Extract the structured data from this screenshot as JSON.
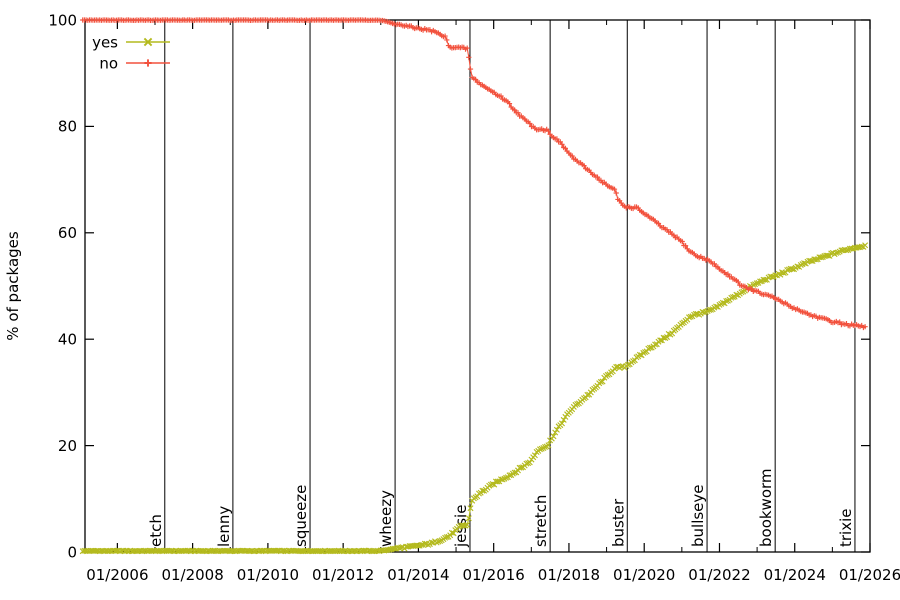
{
  "page": {
    "background": "#ffffff"
  },
  "chart_data": {
    "type": "line",
    "title": "",
    "xlabel": "",
    "ylabel": "% of packages",
    "grid": false,
    "x_range": [
      2005.14,
      2026.0
    ],
    "y_range": [
      0,
      100
    ],
    "x_ticks": [
      {
        "year": 2006,
        "label": "01/2006"
      },
      {
        "year": 2008,
        "label": "01/2008"
      },
      {
        "year": 2010,
        "label": "01/2010"
      },
      {
        "year": 2012,
        "label": "01/2012"
      },
      {
        "year": 2014,
        "label": "01/2014"
      },
      {
        "year": 2016,
        "label": "01/2016"
      },
      {
        "year": 2018,
        "label": "01/2018"
      },
      {
        "year": 2020,
        "label": "01/2020"
      },
      {
        "year": 2022,
        "label": "01/2022"
      },
      {
        "year": 2024,
        "label": "01/2024"
      },
      {
        "year": 2026,
        "label": "01/2026"
      }
    ],
    "x_minor_ticks": [
      2007,
      2009,
      2011,
      2013,
      2015,
      2017,
      2019,
      2021,
      2023,
      2025
    ],
    "y_ticks": [
      {
        "value": 0,
        "label": "0"
      },
      {
        "value": 20,
        "label": "20"
      },
      {
        "value": 40,
        "label": "40"
      },
      {
        "value": 60,
        "label": "60"
      },
      {
        "value": 80,
        "label": "80"
      },
      {
        "value": 100,
        "label": "100"
      }
    ],
    "legend": {
      "position": "top-left",
      "entries": [
        {
          "label": "yes",
          "color": "#b4ba1e",
          "marker": "x"
        },
        {
          "label": "no",
          "color": "#f2513d",
          "marker": "+"
        }
      ]
    },
    "release_lines": [
      {
        "label": "etch",
        "year": 2007.26
      },
      {
        "label": "lenny",
        "year": 2009.07
      },
      {
        "label": "squeeze",
        "year": 2011.12
      },
      {
        "label": "wheezy",
        "year": 2013.38
      },
      {
        "label": "jessie",
        "year": 2015.37
      },
      {
        "label": "stretch",
        "year": 2017.5
      },
      {
        "label": "buster",
        "year": 2019.55
      },
      {
        "label": "bullseye",
        "year": 2021.67
      },
      {
        "label": "bookworm",
        "year": 2023.48
      },
      {
        "label": "trixie",
        "year": 2025.6
      }
    ],
    "series": [
      {
        "name": "yes",
        "color": "#b4ba1e",
        "marker": "x",
        "points": [
          [
            2005.08,
            0.2
          ],
          [
            2012.9,
            0.2
          ],
          [
            2013.1,
            0.3
          ],
          [
            2013.25,
            0.5
          ],
          [
            2013.55,
            0.8
          ],
          [
            2013.85,
            1.0
          ],
          [
            2014.1,
            1.3
          ],
          [
            2014.4,
            1.7
          ],
          [
            2014.62,
            2.4
          ],
          [
            2014.8,
            2.9
          ],
          [
            2015.0,
            4.1
          ],
          [
            2015.12,
            4.8
          ],
          [
            2015.3,
            5.1
          ],
          [
            2015.36,
            7.0
          ],
          [
            2015.42,
            9.7
          ],
          [
            2015.6,
            10.8
          ],
          [
            2015.7,
            11.4
          ],
          [
            2015.95,
            12.6
          ],
          [
            2016.2,
            13.6
          ],
          [
            2016.5,
            14.7
          ],
          [
            2016.75,
            15.9
          ],
          [
            2017.0,
            17.2
          ],
          [
            2017.15,
            18.9
          ],
          [
            2017.3,
            19.7
          ],
          [
            2017.45,
            20.0
          ],
          [
            2017.52,
            21.2
          ],
          [
            2017.8,
            24.2
          ],
          [
            2018.05,
            26.7
          ],
          [
            2018.35,
            28.6
          ],
          [
            2018.6,
            30.1
          ],
          [
            2018.85,
            31.9
          ],
          [
            2019.12,
            33.9
          ],
          [
            2019.25,
            34.6
          ],
          [
            2019.5,
            34.8
          ],
          [
            2019.58,
            35.3
          ],
          [
            2019.95,
            37.2
          ],
          [
            2020.2,
            38.6
          ],
          [
            2020.5,
            40.0
          ],
          [
            2020.75,
            41.3
          ],
          [
            2021.0,
            42.8
          ],
          [
            2021.2,
            44.2
          ],
          [
            2021.4,
            44.7
          ],
          [
            2021.67,
            45.1
          ],
          [
            2021.9,
            45.9
          ],
          [
            2022.15,
            47.0
          ],
          [
            2022.45,
            48.2
          ],
          [
            2022.7,
            49.4
          ],
          [
            2022.95,
            50.3
          ],
          [
            2023.2,
            51.2
          ],
          [
            2023.48,
            51.9
          ],
          [
            2023.9,
            53.1
          ],
          [
            2024.4,
            54.6
          ],
          [
            2024.95,
            55.9
          ],
          [
            2025.35,
            56.8
          ],
          [
            2025.65,
            57.3
          ],
          [
            2025.88,
            57.6
          ]
        ]
      },
      {
        "name": "no",
        "color": "#f2513d",
        "marker": "+",
        "points": [
          [
            2005.08,
            100
          ],
          [
            2012.9,
            100
          ],
          [
            2013.1,
            99.8
          ],
          [
            2013.25,
            99.5
          ],
          [
            2013.55,
            99.0
          ],
          [
            2013.85,
            98.6
          ],
          [
            2014.1,
            98.3
          ],
          [
            2014.4,
            97.9
          ],
          [
            2014.62,
            97.1
          ],
          [
            2014.72,
            96.8
          ],
          [
            2014.8,
            95.2
          ],
          [
            2014.9,
            94.9
          ],
          [
            2015.3,
            94.6
          ],
          [
            2015.36,
            92.0
          ],
          [
            2015.42,
            89.2
          ],
          [
            2015.6,
            88.3
          ],
          [
            2015.7,
            87.7
          ],
          [
            2015.95,
            86.6
          ],
          [
            2016.2,
            85.5
          ],
          [
            2016.34,
            84.8
          ],
          [
            2016.5,
            83.5
          ],
          [
            2016.75,
            81.7
          ],
          [
            2017.0,
            80.2
          ],
          [
            2017.12,
            79.6
          ],
          [
            2017.42,
            79.3
          ],
          [
            2017.52,
            78.5
          ],
          [
            2017.8,
            76.7
          ],
          [
            2018.05,
            74.5
          ],
          [
            2018.35,
            72.7
          ],
          [
            2018.6,
            71.3
          ],
          [
            2018.85,
            69.8
          ],
          [
            2019.12,
            68.4
          ],
          [
            2019.24,
            67.9
          ],
          [
            2019.3,
            66.3
          ],
          [
            2019.45,
            65.1
          ],
          [
            2019.55,
            64.8
          ],
          [
            2019.8,
            64.7
          ],
          [
            2019.95,
            63.9
          ],
          [
            2020.2,
            62.6
          ],
          [
            2020.5,
            60.9
          ],
          [
            2020.75,
            59.7
          ],
          [
            2021.0,
            58.3
          ],
          [
            2021.2,
            56.6
          ],
          [
            2021.4,
            55.6
          ],
          [
            2021.67,
            55.0
          ],
          [
            2021.9,
            53.8
          ],
          [
            2022.15,
            52.4
          ],
          [
            2022.45,
            51.1
          ],
          [
            2022.58,
            50.0
          ],
          [
            2022.85,
            49.3
          ],
          [
            2023.15,
            48.5
          ],
          [
            2023.48,
            47.7
          ],
          [
            2023.9,
            46.1
          ],
          [
            2024.4,
            44.6
          ],
          [
            2024.95,
            43.4
          ],
          [
            2025.35,
            42.8
          ],
          [
            2025.65,
            42.5
          ],
          [
            2025.88,
            42.3
          ]
        ]
      }
    ]
  }
}
